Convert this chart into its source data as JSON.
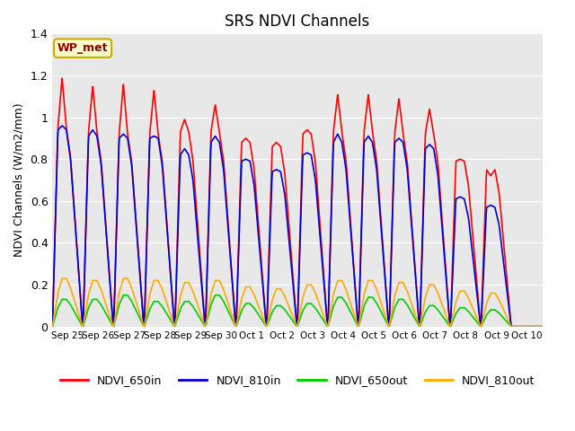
{
  "title": "SRS NDVI Channels",
  "ylabel": "NDVI Channels (W/m2/mm)",
  "site_label": "WP_met",
  "ylim": [
    0,
    1.4
  ],
  "yticks": [
    0.0,
    0.2,
    0.4,
    0.6,
    0.8,
    1.0,
    1.2,
    1.4
  ],
  "xtick_labels": [
    "Sep 25",
    "Sep 26",
    "Sep 27",
    "Sep 28",
    "Sep 29",
    "Sep 30",
    "Oct 1",
    "Oct 2",
    "Oct 3",
    "Oct 4",
    "Oct 5",
    "Oct 6",
    "Oct 7",
    "Oct 8",
    "Oct 9",
    "Oct 10"
  ],
  "colors": {
    "NDVI_650in": "#ff0000",
    "NDVI_810in": "#0000cc",
    "NDVI_650out": "#00cc00",
    "NDVI_810out": "#ffaa00"
  },
  "bg_color": "#e8e8e8",
  "peak_650in": [
    1.19,
    1.15,
    1.16,
    1.13,
    0.99,
    1.06,
    0.9,
    0.88,
    0.94,
    1.11,
    1.11,
    1.09,
    1.04,
    0.8,
    0.72,
    0.0
  ],
  "peak_810in": [
    0.96,
    0.94,
    0.92,
    0.91,
    0.85,
    0.91,
    0.8,
    0.75,
    0.83,
    0.92,
    0.91,
    0.9,
    0.87,
    0.62,
    0.58,
    0.0
  ],
  "peak_650out": [
    0.13,
    0.13,
    0.15,
    0.12,
    0.12,
    0.15,
    0.11,
    0.1,
    0.11,
    0.14,
    0.14,
    0.13,
    0.1,
    0.09,
    0.08,
    0.0
  ],
  "peak_810out": [
    0.23,
    0.22,
    0.23,
    0.22,
    0.21,
    0.22,
    0.19,
    0.18,
    0.2,
    0.22,
    0.22,
    0.21,
    0.2,
    0.17,
    0.16,
    0.0
  ],
  "shoulder_650in": [
    0.95,
    0.93,
    0.92,
    0.92,
    0.93,
    0.93,
    0.88,
    0.86,
    0.92,
    0.93,
    0.93,
    0.92,
    0.92,
    0.79,
    0.75,
    0.0
  ],
  "shoulder_810in": [
    0.94,
    0.91,
    0.9,
    0.9,
    0.82,
    0.88,
    0.79,
    0.74,
    0.82,
    0.88,
    0.88,
    0.88,
    0.85,
    0.61,
    0.57,
    0.0
  ],
  "n_days": 16,
  "pts_per_day": 60
}
